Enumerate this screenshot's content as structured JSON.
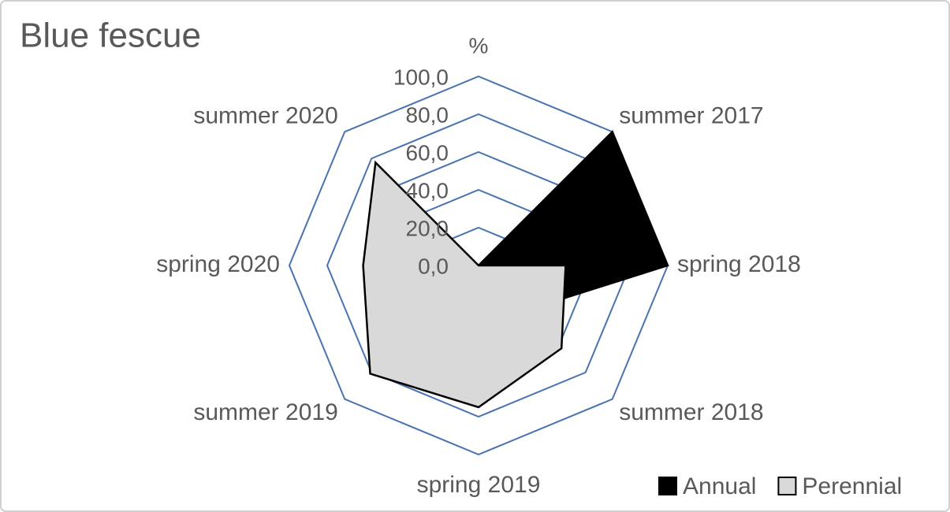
{
  "chart_data": {
    "type": "radar",
    "title": "Blue  fescue",
    "y_label": "%",
    "categories": [
      null,
      "summer 2017",
      "spring 2018",
      "summer 2018",
      "spring 2019",
      "summer 2019",
      "spring 2020",
      "summer 2020"
    ],
    "series": [
      {
        "name": "Annual",
        "color": "#000000",
        "values": [
          0,
          100,
          100,
          34,
          0,
          0,
          0,
          0
        ]
      },
      {
        "name": "Perennial",
        "color": "#d9d9d9",
        "values": [
          0,
          0,
          46,
          62,
          75,
          81,
          61,
          77
        ]
      }
    ],
    "ylim": [
      0,
      100
    ],
    "yticks": [
      {
        "value": 0,
        "label": "0,0"
      },
      {
        "value": 20,
        "label": "20,0"
      },
      {
        "value": 40,
        "label": "40,0"
      },
      {
        "value": 60,
        "label": "60,0"
      },
      {
        "value": 80,
        "label": "80,0"
      },
      {
        "value": 100,
        "label": "100,0"
      }
    ],
    "grid": true,
    "grid_color": "#4a72b0",
    "legend": "bottom-right"
  }
}
